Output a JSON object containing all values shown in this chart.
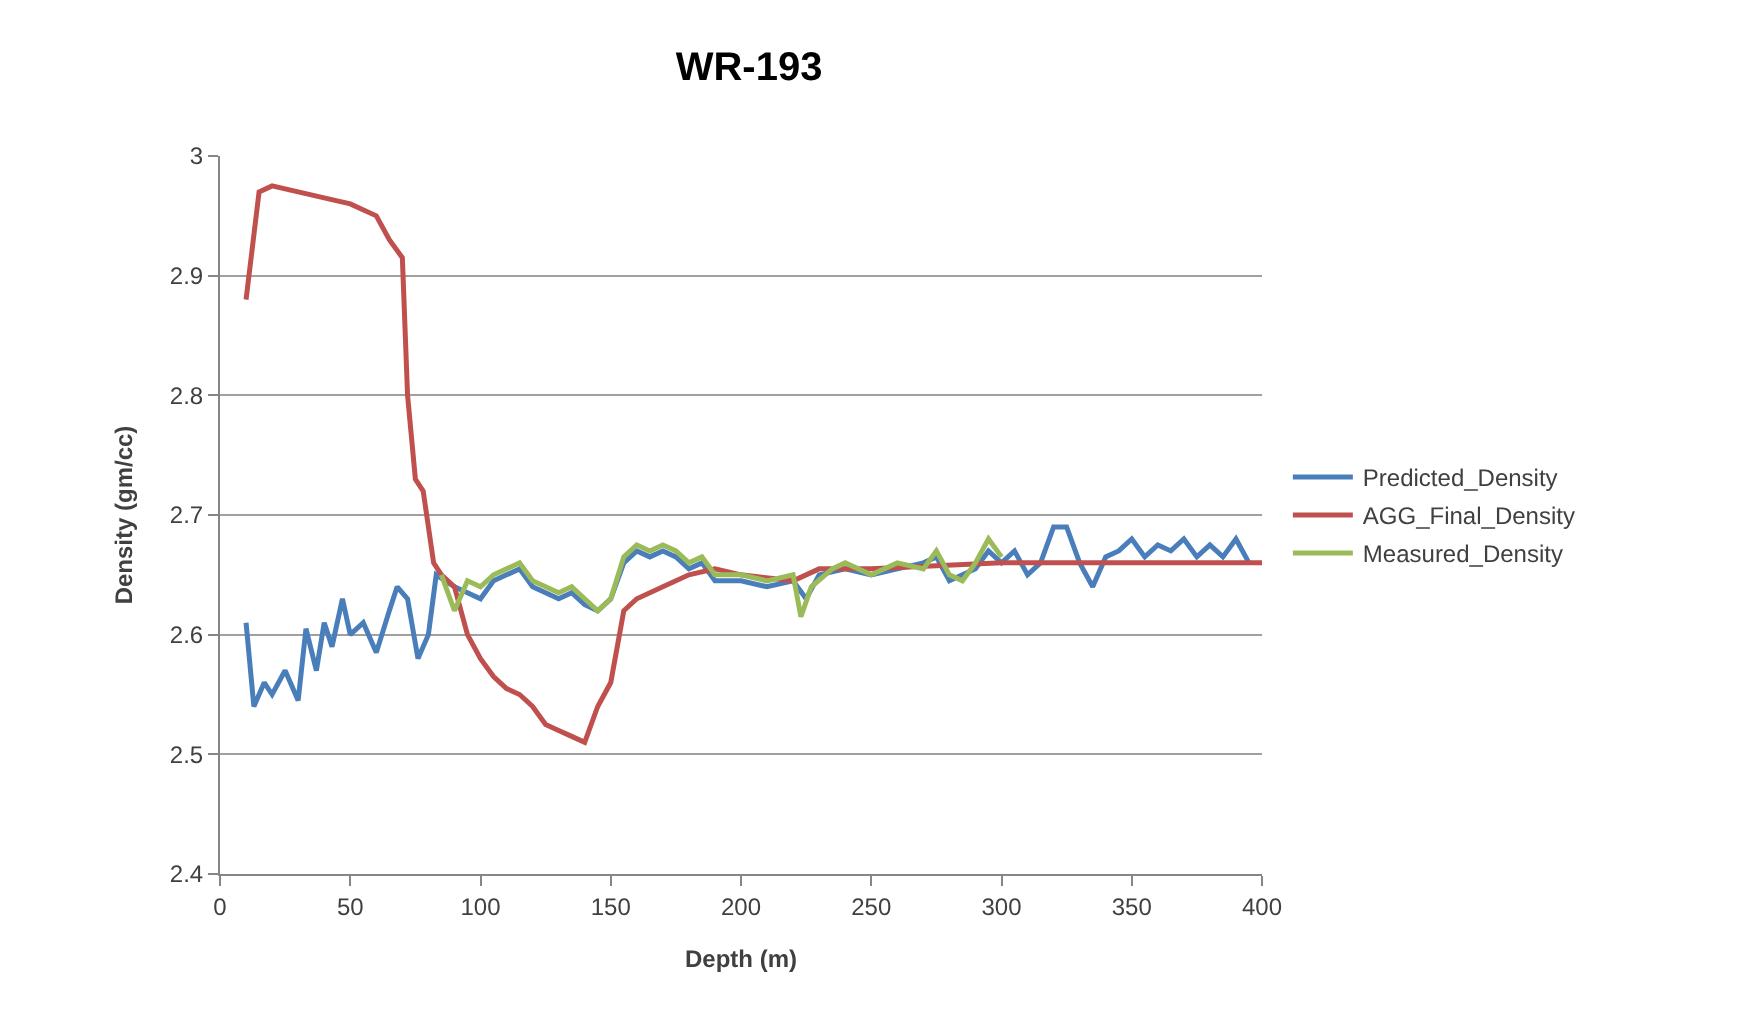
{
  "chart_data": {
    "type": "line",
    "title": "WR-193",
    "xlabel": "Depth (m)",
    "ylabel": "Density (gm/cc)",
    "xlim": [
      0,
      400
    ],
    "xticks": [
      0,
      50,
      100,
      150,
      200,
      250,
      300,
      350,
      400
    ],
    "ylim": [
      2.4,
      3
    ],
    "yticks": [
      2.4,
      2.5,
      2.6,
      2.7,
      2.8,
      2.9,
      3
    ],
    "grid": "y",
    "legend": "right",
    "marker": "none",
    "line_style": "solid",
    "series": [
      {
        "name": "Predicted_Density",
        "color": "#4a7ebb",
        "x": [
          10,
          13,
          17,
          20,
          25,
          30,
          33,
          37,
          40,
          43,
          47,
          50,
          55,
          60,
          65,
          68,
          72,
          76,
          80,
          83,
          90,
          95,
          100,
          105,
          110,
          115,
          120,
          125,
          130,
          135,
          140,
          145,
          150,
          155,
          160,
          165,
          170,
          175,
          180,
          185,
          190,
          200,
          210,
          220,
          225,
          230,
          240,
          250,
          260,
          270,
          275,
          280,
          285,
          290,
          295,
          300,
          305,
          310,
          315,
          320,
          325,
          330,
          335,
          340,
          345,
          350,
          355,
          360,
          365,
          370,
          375,
          380,
          385,
          390,
          395
        ],
        "values": [
          2.61,
          2.54,
          2.56,
          2.55,
          2.57,
          2.545,
          2.605,
          2.57,
          2.61,
          2.59,
          2.63,
          2.6,
          2.61,
          2.585,
          2.62,
          2.64,
          2.63,
          2.58,
          2.6,
          2.65,
          2.64,
          2.635,
          2.63,
          2.645,
          2.65,
          2.655,
          2.64,
          2.635,
          2.63,
          2.635,
          2.625,
          2.62,
          2.63,
          2.66,
          2.67,
          2.665,
          2.67,
          2.665,
          2.655,
          2.66,
          2.645,
          2.645,
          2.64,
          2.645,
          2.63,
          2.65,
          2.655,
          2.65,
          2.655,
          2.66,
          2.665,
          2.645,
          2.65,
          2.655,
          2.67,
          2.66,
          2.67,
          2.65,
          2.66,
          2.69,
          2.69,
          2.66,
          2.64,
          2.665,
          2.67,
          2.68,
          2.665,
          2.675,
          2.67,
          2.68,
          2.665,
          2.675,
          2.665,
          2.68,
          2.66
        ]
      },
      {
        "name": "AGG_Final_Density",
        "color": "#c0504d",
        "x": [
          10,
          15,
          20,
          30,
          40,
          50,
          60,
          65,
          70,
          72,
          75,
          78,
          82,
          85,
          90,
          95,
          100,
          105,
          110,
          115,
          120,
          125,
          130,
          135,
          140,
          145,
          150,
          155,
          160,
          170,
          180,
          190,
          200,
          220,
          230,
          250,
          300,
          400
        ],
        "values": [
          2.88,
          2.97,
          2.975,
          2.97,
          2.965,
          2.96,
          2.95,
          2.93,
          2.915,
          2.8,
          2.73,
          2.72,
          2.66,
          2.65,
          2.64,
          2.6,
          2.58,
          2.565,
          2.555,
          2.55,
          2.54,
          2.525,
          2.52,
          2.515,
          2.51,
          2.54,
          2.56,
          2.62,
          2.63,
          2.64,
          2.65,
          2.655,
          2.65,
          2.645,
          2.655,
          2.655,
          2.66,
          2.66
        ]
      },
      {
        "name": "Measured_Density",
        "color": "#9bbb59",
        "x": [
          85,
          90,
          95,
          100,
          105,
          110,
          115,
          120,
          125,
          130,
          135,
          140,
          145,
          150,
          155,
          160,
          165,
          170,
          175,
          180,
          185,
          190,
          200,
          210,
          220,
          223,
          227,
          235,
          240,
          250,
          260,
          270,
          275,
          280,
          285,
          290,
          295,
          300
        ],
        "values": [
          2.65,
          2.62,
          2.645,
          2.64,
          2.65,
          2.655,
          2.66,
          2.645,
          2.64,
          2.635,
          2.64,
          2.63,
          2.62,
          2.63,
          2.665,
          2.675,
          2.67,
          2.675,
          2.67,
          2.66,
          2.665,
          2.65,
          2.65,
          2.645,
          2.65,
          2.615,
          2.64,
          2.655,
          2.66,
          2.65,
          2.66,
          2.655,
          2.67,
          2.65,
          2.645,
          2.66,
          2.68,
          2.665
        ]
      }
    ]
  }
}
